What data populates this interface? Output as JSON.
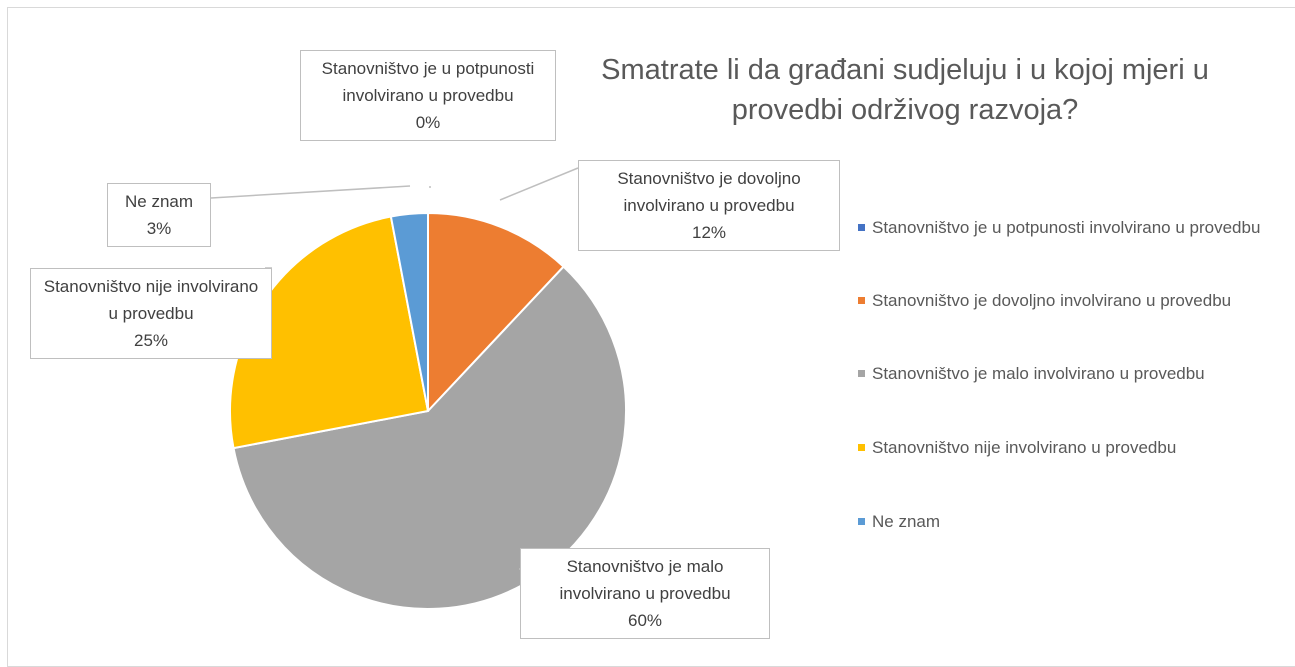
{
  "chart_data": {
    "type": "pie",
    "title": "Smatrate li da građani sudjeluju i u kojoj mjeri u provedbi održivog razvoja?",
    "categories": [
      "Stanovništvo je u potpunosti involvirano u provedbu",
      "Stanovništvo je dovoljno involvirano u provedbu",
      "Stanovništvo je malo involvirano u provedbu",
      "Stanovništvo nije involvirano u provedbu",
      "Ne znam"
    ],
    "values": [
      0,
      12,
      60,
      25,
      3
    ],
    "value_labels": [
      "0%",
      "12%",
      "60%",
      "25%",
      "3%"
    ],
    "colors": [
      "#4472c4",
      "#ed7d31",
      "#a5a5a5",
      "#ffc000",
      "#5b9bd5"
    ],
    "legend": "right"
  }
}
